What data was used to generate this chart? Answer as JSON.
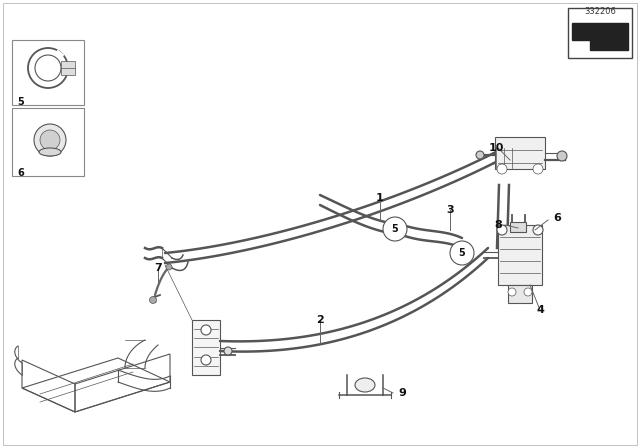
{
  "bg_color": "#ffffff",
  "fig_width": 6.4,
  "fig_height": 4.48,
  "dpi": 100,
  "diagram_number": "332206",
  "line_color": "#555555",
  "thin_color": "#777777",
  "text_color": "#111111",
  "label_fontsize": 8,
  "small_fontsize": 7,
  "lw_hose": 1.8,
  "lw_thin": 0.8,
  "lw_detail": 0.5
}
